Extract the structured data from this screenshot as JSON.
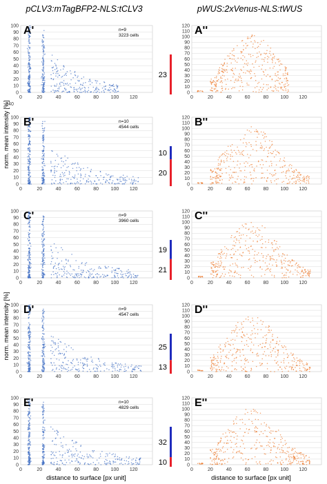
{
  "figure": {
    "left_title": "pCLV3:mTagBFP2-NLS:tCLV3",
    "right_title": "pWUS:2xVenus-NLS:tWUS",
    "ylabel": "norm. mean intensity [%]",
    "xlabel": "distance to surface [px unit]",
    "overflow_tick": "140",
    "colors": {
      "blue_points": "#4472c4",
      "orange_points": "#ed7d31",
      "red_bar": "#e8202a",
      "blue_bar": "#1f2bbd"
    }
  },
  "chart_data": [
    {
      "id": "A1",
      "type": "scatter",
      "label": "A'",
      "n": "n=9",
      "cells": "3223 cells",
      "color": "#4472c4",
      "series_kind": "clv3",
      "x_ticks": [
        "0",
        "20",
        "40",
        "60",
        "80",
        "100",
        "120",
        "140"
      ],
      "y_ticks": [
        "0",
        "10",
        "20",
        "30",
        "40",
        "50",
        "60",
        "70",
        "80",
        "90",
        "100"
      ],
      "xlim": [
        0,
        140
      ],
      "ylim": [
        0,
        100
      ],
      "grid": true,
      "max_x": 105
    },
    {
      "id": "A2",
      "type": "scatter",
      "label": "A''",
      "color": "#ed7d31",
      "series_kind": "wus",
      "x_ticks": [
        "0",
        "20",
        "40",
        "60",
        "80",
        "100",
        "120",
        "140"
      ],
      "y_ticks": [
        "0",
        "10",
        "20",
        "30",
        "40",
        "50",
        "60",
        "70",
        "80",
        "90",
        "100",
        "110",
        "120"
      ],
      "xlim": [
        0,
        140
      ],
      "ylim": [
        0,
        120
      ],
      "grid": true,
      "max_x": 105
    },
    {
      "id": "B1",
      "type": "scatter",
      "label": "B'",
      "n": "n=10",
      "cells": "4544 cells",
      "color": "#4472c4",
      "series_kind": "clv3",
      "x_ticks": [
        "0",
        "20",
        "40",
        "60",
        "80",
        "100",
        "120",
        "140"
      ],
      "y_ticks": [
        "0",
        "10",
        "20",
        "30",
        "40",
        "50",
        "60",
        "70",
        "80",
        "90",
        "100"
      ],
      "xlim": [
        0,
        140
      ],
      "ylim": [
        0,
        100
      ],
      "grid": true,
      "max_x": 125
    },
    {
      "id": "B2",
      "type": "scatter",
      "label": "B''",
      "color": "#ed7d31",
      "series_kind": "wus",
      "x_ticks": [
        "0",
        "20",
        "40",
        "60",
        "80",
        "100",
        "120",
        "140"
      ],
      "y_ticks": [
        "0",
        "10",
        "20",
        "30",
        "40",
        "50",
        "60",
        "70",
        "80",
        "90",
        "100",
        "110",
        "120"
      ],
      "xlim": [
        0,
        140
      ],
      "ylim": [
        0,
        120
      ],
      "grid": true,
      "max_x": 128
    },
    {
      "id": "C1",
      "type": "scatter",
      "label": "C'",
      "n": "n=9",
      "cells": "3960 cells",
      "color": "#4472c4",
      "series_kind": "clv3",
      "x_ticks": [
        "0",
        "20",
        "40",
        "60",
        "80",
        "100",
        "120",
        "140"
      ],
      "y_ticks": [
        "0",
        "10",
        "20",
        "30",
        "40",
        "50",
        "60",
        "70",
        "80",
        "90",
        "100"
      ],
      "xlim": [
        0,
        140
      ],
      "ylim": [
        0,
        100
      ],
      "grid": true,
      "max_x": 125
    },
    {
      "id": "C2",
      "type": "scatter",
      "label": "C''",
      "color": "#ed7d31",
      "series_kind": "wus",
      "x_ticks": [
        "0",
        "20",
        "40",
        "60",
        "80",
        "100",
        "120",
        "140"
      ],
      "y_ticks": [
        "0",
        "10",
        "20",
        "30",
        "40",
        "50",
        "60",
        "70",
        "80",
        "90",
        "100",
        "110",
        "120"
      ],
      "xlim": [
        0,
        140
      ],
      "ylim": [
        0,
        120
      ],
      "grid": true,
      "max_x": 128
    },
    {
      "id": "D1",
      "type": "scatter",
      "label": "D'",
      "n": "n=9",
      "cells": "4547 cells",
      "color": "#4472c4",
      "series_kind": "clv3",
      "x_ticks": [
        "0",
        "20",
        "40",
        "60",
        "80",
        "100",
        "120",
        "140"
      ],
      "y_ticks": [
        "0",
        "10",
        "20",
        "30",
        "40",
        "50",
        "60",
        "70",
        "80",
        "90",
        "100"
      ],
      "xlim": [
        0,
        140
      ],
      "ylim": [
        0,
        100
      ],
      "grid": true,
      "max_x": 128
    },
    {
      "id": "D2",
      "type": "scatter",
      "label": "D''",
      "color": "#ed7d31",
      "series_kind": "wus",
      "x_ticks": [
        "0",
        "20",
        "40",
        "60",
        "80",
        "100",
        "120",
        "140"
      ],
      "y_ticks": [
        "0",
        "10",
        "20",
        "30",
        "40",
        "50",
        "60",
        "70",
        "80",
        "90",
        "100",
        "110",
        "120"
      ],
      "xlim": [
        0,
        140
      ],
      "ylim": [
        0,
        120
      ],
      "grid": true,
      "max_x": 128
    },
    {
      "id": "E1",
      "type": "scatter",
      "label": "E'",
      "n": "n=10",
      "cells": "4829 cells",
      "color": "#4472c4",
      "series_kind": "clv3",
      "x_ticks": [
        "0",
        "20",
        "40",
        "60",
        "80",
        "100",
        "120",
        "140"
      ],
      "y_ticks": [
        "0",
        "10",
        "20",
        "30",
        "40",
        "50",
        "60",
        "70",
        "80",
        "90",
        "100"
      ],
      "xlim": [
        0,
        140
      ],
      "ylim": [
        0,
        100
      ],
      "grid": true,
      "max_x": 128
    },
    {
      "id": "E2",
      "type": "scatter",
      "label": "E''",
      "color": "#ed7d31",
      "series_kind": "wus",
      "x_ticks": [
        "0",
        "20",
        "40",
        "60",
        "80",
        "100",
        "120",
        "140"
      ],
      "y_ticks": [
        "0",
        "10",
        "20",
        "30",
        "40",
        "50",
        "60",
        "70",
        "80",
        "90",
        "100",
        "110",
        "120"
      ],
      "xlim": [
        0,
        140
      ],
      "ylim": [
        0,
        120
      ],
      "grid": true,
      "max_x": 128
    }
  ],
  "bars": [
    {
      "row": "A",
      "segments": [
        {
          "label": "23",
          "color": "#e8202a",
          "fraction": 1.0
        }
      ]
    },
    {
      "row": "B",
      "segments": [
        {
          "label": "10",
          "color": "#1f2bbd",
          "fraction": 0.33
        },
        {
          "label": "20",
          "color": "#e8202a",
          "fraction": 0.67
        }
      ]
    },
    {
      "row": "C",
      "segments": [
        {
          "label": "19",
          "color": "#1f2bbd",
          "fraction": 0.48
        },
        {
          "label": "21",
          "color": "#e8202a",
          "fraction": 0.52
        }
      ]
    },
    {
      "row": "D",
      "segments": [
        {
          "label": "25",
          "color": "#1f2bbd",
          "fraction": 0.66
        },
        {
          "label": "13",
          "color": "#e8202a",
          "fraction": 0.34
        }
      ]
    },
    {
      "row": "E",
      "segments": [
        {
          "label": "32",
          "color": "#1f2bbd",
          "fraction": 0.76
        },
        {
          "label": "10",
          "color": "#e8202a",
          "fraction": 0.24
        }
      ]
    }
  ]
}
